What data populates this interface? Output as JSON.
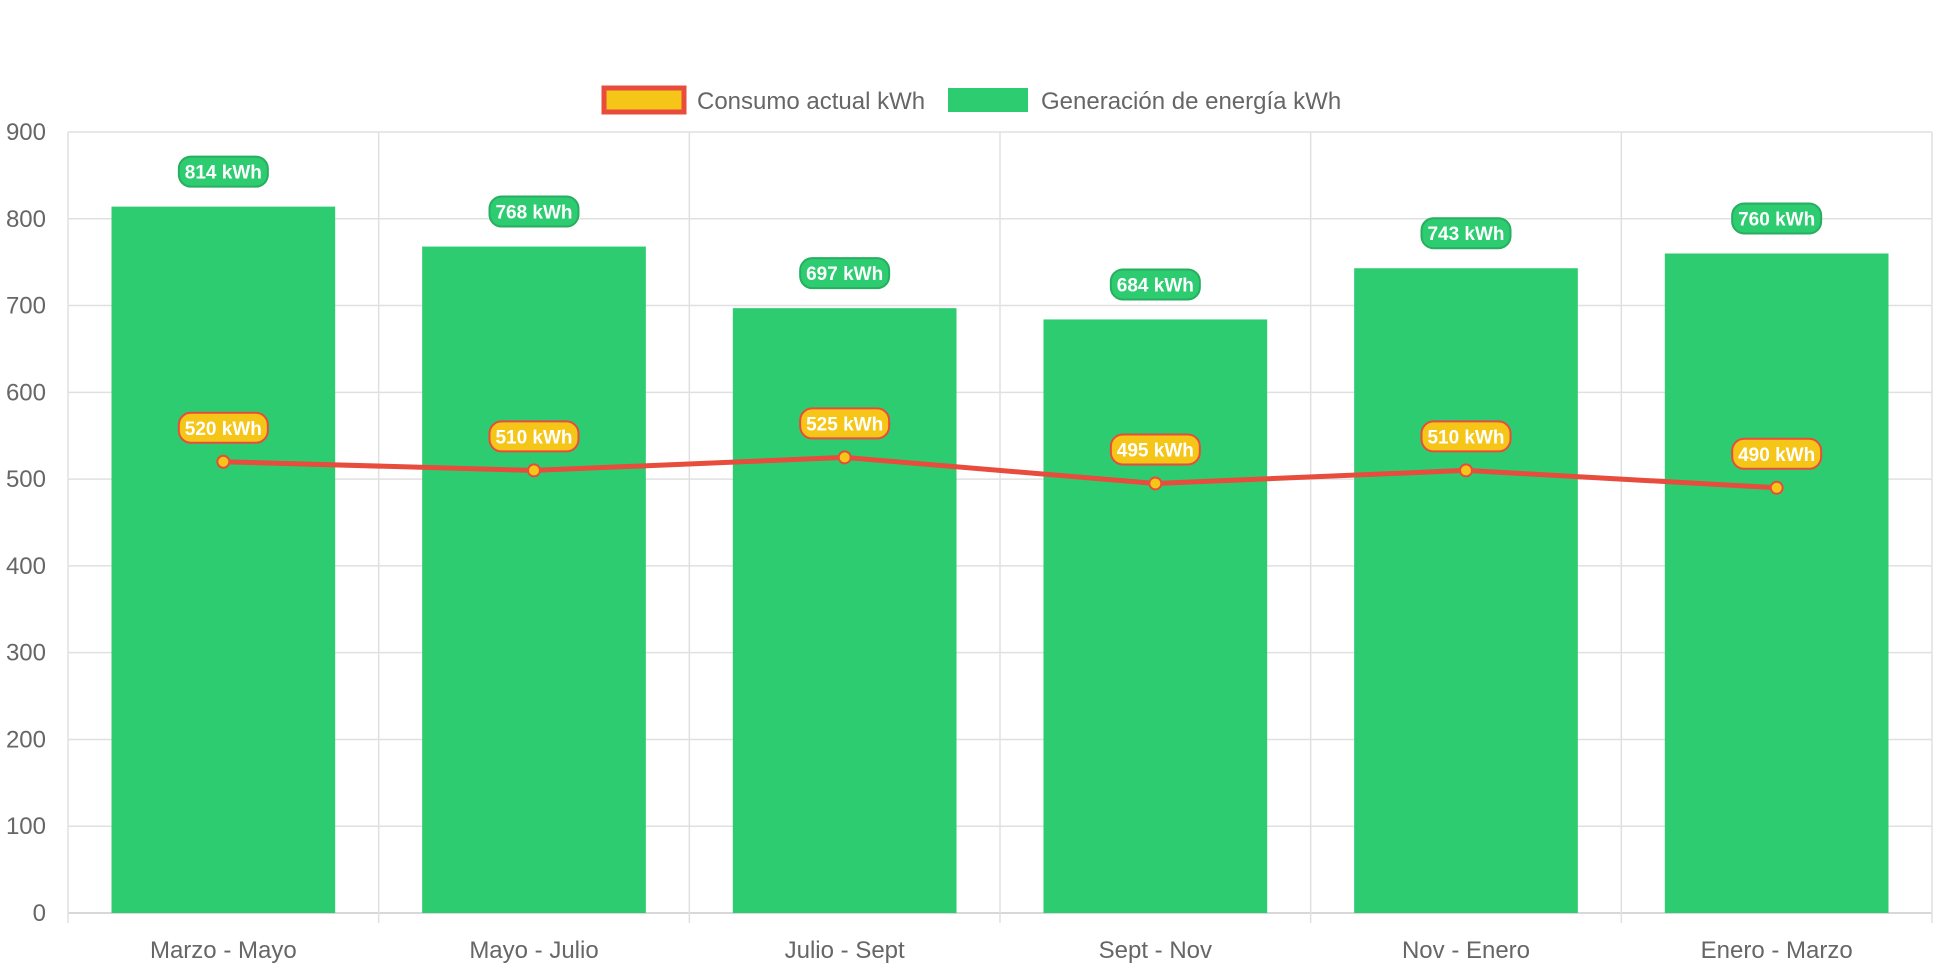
{
  "chart_data": {
    "type": "bar",
    "categories": [
      "Marzo - Mayo",
      "Mayo - Julio",
      "Julio - Sept",
      "Sept - Nov",
      "Nov - Enero",
      "Enero - Marzo"
    ],
    "ylim": [
      0,
      900
    ],
    "yticks": [
      0,
      100,
      200,
      300,
      400,
      500,
      600,
      700,
      800,
      900
    ],
    "grid": true,
    "legend_position": "top-center",
    "unit_suffix": " kWh",
    "series": [
      {
        "name": "Consumo actual kWh",
        "kind": "line",
        "values": [
          520,
          510,
          525,
          495,
          510,
          490
        ],
        "line_color": "#e74c3c",
        "point_color": "#f5c518"
      },
      {
        "name": "Generación de energía kWh",
        "kind": "bar",
        "values": [
          814,
          768,
          697,
          684,
          743,
          760
        ],
        "color": "#2ecc71",
        "label_color": "#27ae60"
      }
    ]
  }
}
